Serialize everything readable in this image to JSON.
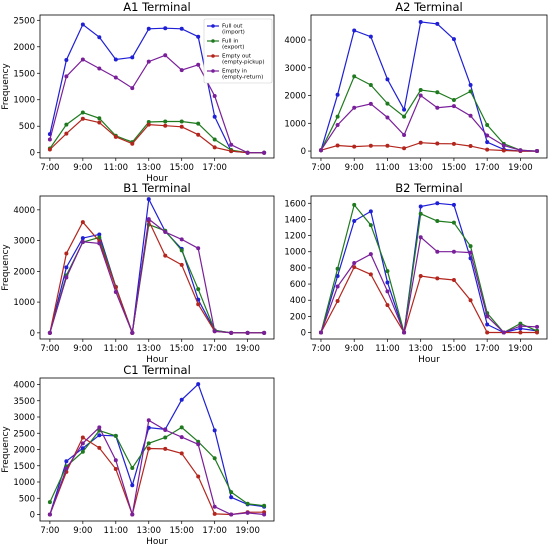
{
  "chart_data": [
    {
      "type": "line",
      "title": "A1 Terminal",
      "xlabel": "Hour",
      "ylabel": "Frequency",
      "x": [
        7,
        8,
        9,
        10,
        11,
        12,
        13,
        14,
        15,
        16,
        17,
        18,
        19,
        20
      ],
      "xticks": [
        7,
        9,
        11,
        13,
        15,
        17
      ],
      "xtick_labels": [
        "7:00",
        "9:00",
        "11:00",
        "13:00",
        "15:00",
        "17:00"
      ],
      "ylim": [
        -100,
        2600
      ],
      "yticks": [
        0,
        500,
        1000,
        1500,
        2000,
        2500
      ],
      "ytick_labels": [
        "0",
        "500",
        "1000",
        "1500",
        "2000",
        "2500"
      ],
      "legend": "top-right",
      "series": [
        {
          "name": "Full out\n(import)",
          "color": "#1f1fd6",
          "values": [
            350,
            1750,
            2420,
            2180,
            1760,
            1800,
            2340,
            2350,
            2340,
            2190,
            680,
            30,
            0,
            0
          ]
        },
        {
          "name": "Full in\n(export)",
          "color": "#1f7a1f",
          "values": [
            80,
            530,
            760,
            650,
            320,
            200,
            580,
            590,
            590,
            550,
            250,
            50,
            0,
            0
          ]
        },
        {
          "name": "Empty out\n(empty-pickup)",
          "color": "#b3261e",
          "values": [
            60,
            360,
            640,
            570,
            300,
            170,
            530,
            510,
            490,
            340,
            100,
            30,
            0,
            0
          ]
        },
        {
          "name": "Empty in\n(empty-return)",
          "color": "#7a1f9a",
          "values": [
            250,
            1440,
            1760,
            1590,
            1420,
            1220,
            1720,
            1840,
            1560,
            1660,
            1070,
            150,
            0,
            0
          ]
        }
      ]
    },
    {
      "type": "line",
      "title": "A2 Terminal",
      "xlabel": "",
      "ylabel": "",
      "x": [
        7,
        8,
        9,
        10,
        11,
        12,
        13,
        14,
        15,
        16,
        17,
        18,
        19,
        20
      ],
      "xticks": [
        7,
        9,
        11,
        13,
        15,
        17,
        19
      ],
      "xtick_labels": [
        "7:00",
        "9:00",
        "11:00",
        "13:00",
        "15:00",
        "17:00",
        "19:00"
      ],
      "ylim": [
        -250,
        4900
      ],
      "yticks": [
        0,
        1000,
        2000,
        3000,
        4000
      ],
      "ytick_labels": [
        "0",
        "1000",
        "2000",
        "3000",
        "4000"
      ],
      "series": [
        {
          "color": "#1f1fd6",
          "values": [
            30,
            2030,
            4340,
            4120,
            2580,
            1490,
            4650,
            4580,
            4030,
            2380,
            320,
            60,
            0,
            0
          ]
        },
        {
          "color": "#1f7a1f",
          "values": [
            30,
            1240,
            2690,
            2380,
            1710,
            1240,
            2200,
            2120,
            1840,
            2150,
            940,
            260,
            30,
            0
          ]
        },
        {
          "color": "#b3261e",
          "values": [
            30,
            200,
            160,
            190,
            190,
            100,
            300,
            270,
            260,
            180,
            50,
            20,
            0,
            0
          ]
        },
        {
          "color": "#7a1f9a",
          "values": [
            30,
            940,
            1560,
            1700,
            1210,
            580,
            2000,
            1560,
            1620,
            1270,
            560,
            200,
            30,
            0
          ]
        }
      ]
    },
    {
      "type": "line",
      "title": "B1 Terminal",
      "xlabel": "Hour",
      "ylabel": "Frequency",
      "x": [
        7,
        8,
        9,
        10,
        11,
        12,
        13,
        14,
        15,
        16,
        17,
        18,
        19,
        20
      ],
      "xticks": [
        7,
        9,
        11,
        13,
        15,
        17,
        19
      ],
      "xtick_labels": [
        "7:00",
        "9:00",
        "11:00",
        "13:00",
        "15:00",
        "17:00",
        "19:00"
      ],
      "ylim": [
        -200,
        4450
      ],
      "yticks": [
        0,
        1000,
        2000,
        3000,
        4000
      ],
      "ytick_labels": [
        "0",
        "1000",
        "2000",
        "3000",
        "4000"
      ],
      "series": [
        {
          "color": "#1f1fd6",
          "values": [
            0,
            2130,
            3080,
            3200,
            1500,
            0,
            4350,
            3300,
            2730,
            1080,
            80,
            0,
            0,
            0
          ]
        },
        {
          "color": "#1f7a1f",
          "values": [
            0,
            1870,
            2950,
            3100,
            1490,
            0,
            3520,
            3320,
            2680,
            1420,
            80,
            0,
            0,
            0
          ]
        },
        {
          "color": "#b3261e",
          "values": [
            0,
            2580,
            3600,
            2980,
            1480,
            0,
            3640,
            2510,
            2210,
            930,
            50,
            0,
            0,
            0
          ]
        },
        {
          "color": "#7a1f9a",
          "values": [
            0,
            1800,
            2960,
            2910,
            1330,
            0,
            3700,
            3280,
            3040,
            2750,
            50,
            0,
            0,
            0
          ]
        }
      ]
    },
    {
      "type": "line",
      "title": "B2  Terminal",
      "xlabel": "Hour",
      "ylabel": "",
      "x": [
        7,
        8,
        9,
        10,
        11,
        12,
        13,
        14,
        15,
        16,
        17,
        18,
        19,
        20
      ],
      "xticks": [
        7,
        9,
        11,
        13,
        15,
        17,
        19
      ],
      "xtick_labels": [
        "7:00",
        "9:00",
        "11:00",
        "13:00",
        "15:00",
        "17:00",
        "19:00"
      ],
      "ylim": [
        -80,
        1690
      ],
      "yticks": [
        0,
        200,
        400,
        600,
        800,
        1000,
        1200,
        1400,
        1600
      ],
      "ytick_labels": [
        "0",
        "200",
        "400",
        "600",
        "800",
        "1000",
        "1200",
        "1400",
        "1600"
      ],
      "series": [
        {
          "color": "#1f1fd6",
          "values": [
            0,
            700,
            1380,
            1500,
            620,
            0,
            1560,
            1600,
            1580,
            920,
            100,
            0,
            50,
            20
          ]
        },
        {
          "color": "#1f7a1f",
          "values": [
            0,
            790,
            1580,
            1330,
            760,
            0,
            1470,
            1380,
            1360,
            1070,
            240,
            0,
            110,
            20
          ]
        },
        {
          "color": "#b3261e",
          "values": [
            0,
            390,
            810,
            720,
            340,
            0,
            700,
            670,
            650,
            400,
            0,
            0,
            0,
            0
          ]
        },
        {
          "color": "#7a1f9a",
          "values": [
            0,
            570,
            860,
            970,
            510,
            0,
            1180,
            1000,
            1000,
            990,
            200,
            0,
            80,
            70
          ]
        }
      ]
    },
    {
      "type": "line",
      "title": "C1 Terminal",
      "xlabel": "Hour",
      "ylabel": "Frequency",
      "x": [
        7,
        8,
        9,
        10,
        11,
        12,
        13,
        14,
        15,
        16,
        17,
        18,
        19,
        20
      ],
      "xticks": [
        7,
        9,
        11,
        13,
        15,
        17,
        19
      ],
      "xtick_labels": [
        "7:00",
        "9:00",
        "11:00",
        "13:00",
        "15:00",
        "17:00",
        "19:00"
      ],
      "ylim": [
        -200,
        4200
      ],
      "yticks": [
        0,
        500,
        1000,
        1500,
        2000,
        2500,
        3000,
        3500,
        4000
      ],
      "ytick_labels": [
        "0",
        "500",
        "1000",
        "1500",
        "2000",
        "2500",
        "3000",
        "3500",
        "4000"
      ],
      "series": [
        {
          "color": "#1f1fd6",
          "values": [
            0,
            1640,
            2040,
            2440,
            2420,
            900,
            2670,
            2620,
            3530,
            4010,
            2590,
            530,
            310,
            240
          ]
        },
        {
          "color": "#1f7a1f",
          "values": [
            380,
            1480,
            1930,
            2580,
            2420,
            1430,
            2190,
            2370,
            2680,
            2240,
            1730,
            690,
            330,
            270
          ]
        },
        {
          "color": "#b3261e",
          "values": [
            0,
            1310,
            2370,
            2050,
            1400,
            0,
            2030,
            2020,
            1880,
            1170,
            20,
            0,
            70,
            70
          ]
        },
        {
          "color": "#7a1f9a",
          "values": [
            0,
            1410,
            2190,
            2680,
            1670,
            0,
            2900,
            2600,
            2380,
            2160,
            240,
            0,
            50,
            0
          ]
        }
      ]
    }
  ]
}
